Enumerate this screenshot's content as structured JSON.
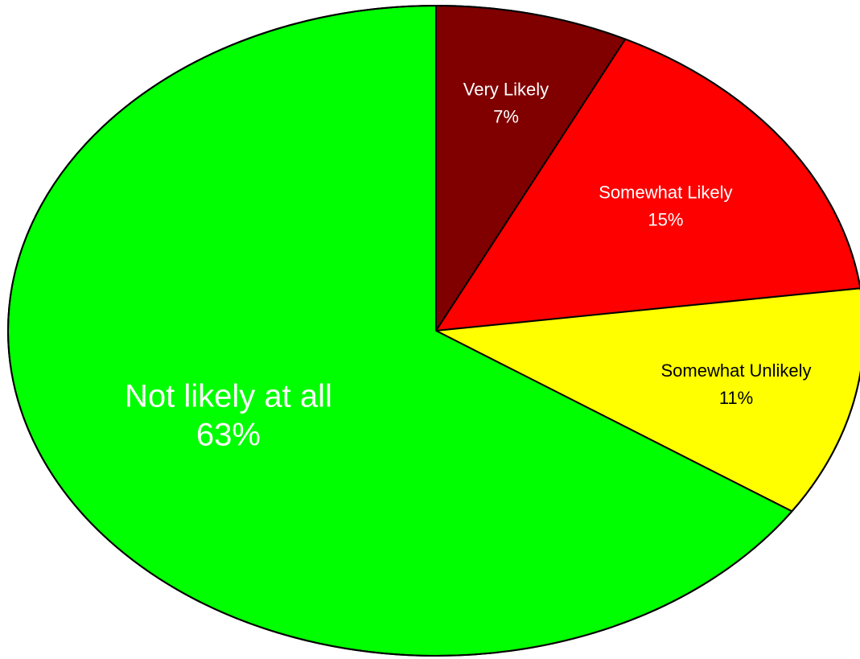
{
  "chart_data": {
    "type": "pie",
    "title": "",
    "start_angle_deg": 0,
    "direction": "clockwise",
    "slices": [
      {
        "label": "Very Likely",
        "value": 7,
        "value_label": "7%",
        "color": "#800000",
        "text_color": "#ffffff"
      },
      {
        "label": "Somewhat Likely",
        "value": 15,
        "value_label": "15%",
        "color": "#ff0000",
        "text_color": "#ffffff"
      },
      {
        "label": "Somewhat Unlikely",
        "value": 11,
        "value_label": "11%",
        "color": "#ffff00",
        "text_color": "#000000"
      },
      {
        "label": "Not likely at all",
        "value": 63,
        "value_label": "63%",
        "color": "#00ff00",
        "text_color": "#ffffff"
      }
    ]
  }
}
